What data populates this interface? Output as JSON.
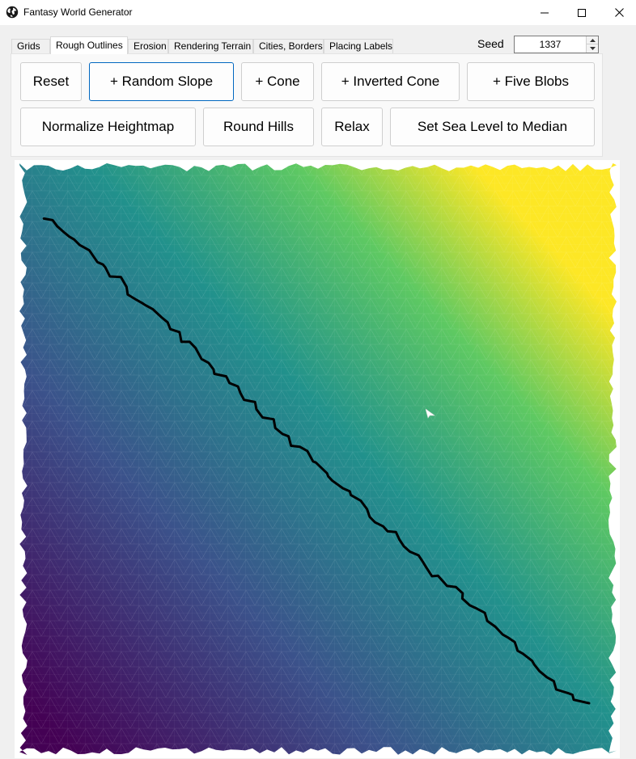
{
  "window": {
    "title": "Fantasy World Generator",
    "icon": "globe-icon"
  },
  "tabs": [
    {
      "label": "Grids"
    },
    {
      "label": "Rough Outlines",
      "active": true
    },
    {
      "label": "Erosion"
    },
    {
      "label": "Rendering Terrain"
    },
    {
      "label": "Cities, Borders"
    },
    {
      "label": "Placing Labels"
    }
  ],
  "seed": {
    "label": "Seed",
    "value": "1337"
  },
  "buttons": {
    "row1": [
      "Reset",
      "+ Random Slope",
      "+ Cone",
      "+ Inverted Cone",
      "+ Five Blobs"
    ],
    "row2": [
      "Normalize Heightmap",
      "Round Hills",
      "Relax",
      "Set Sea Level to Median"
    ]
  },
  "map": {
    "colormap": [
      "#440154",
      "#3b528b",
      "#21918c",
      "#5ec962",
      "#fde725"
    ],
    "coastline_color": "#000000",
    "background": "#ffffff"
  }
}
